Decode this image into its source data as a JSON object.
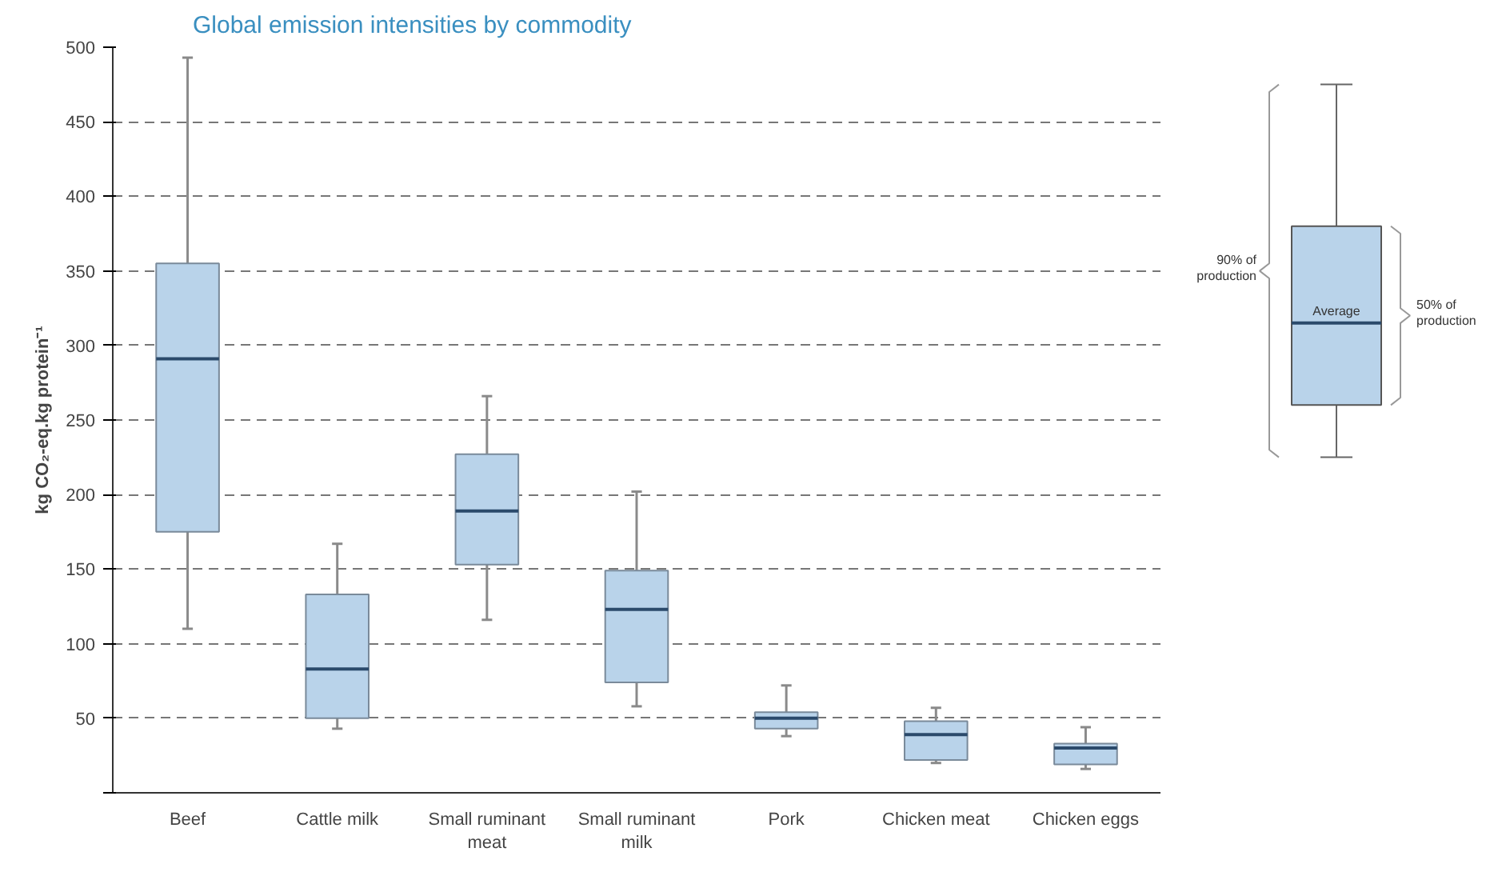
{
  "chart_data": {
    "type": "box",
    "title": "Global emission intensities by commodity",
    "ylabel": "kg CO₂-eq.kg protein⁻¹",
    "categories": [
      "Beef",
      "Cattle milk",
      "Small ruminant meat",
      "Small ruminant milk",
      "Pork",
      "Chicken meat",
      "Chicken eggs"
    ],
    "series": [
      {
        "color": "#b9d3ea",
        "boxes": [
          {
            "low": 110,
            "q1": 175,
            "median": 291,
            "q3": 355,
            "high": 493
          },
          {
            "low": 43,
            "q1": 50,
            "median": 83,
            "q3": 133,
            "high": 167
          },
          {
            "low": 116,
            "q1": 153,
            "median": 189,
            "q3": 227,
            "high": 266
          },
          {
            "low": 58,
            "q1": 74,
            "median": 123,
            "q3": 149,
            "high": 202
          },
          {
            "low": 38,
            "q1": 43,
            "median": 50,
            "q3": 54,
            "high": 72
          },
          {
            "low": 20,
            "q1": 22,
            "median": 39,
            "q3": 48,
            "high": 57
          },
          {
            "low": 16,
            "q1": 19,
            "median": 30,
            "q3": 33,
            "high": 44
          }
        ]
      }
    ],
    "ylim": [
      0,
      500
    ],
    "yticks": [
      {
        "value": 0,
        "label": null
      },
      50,
      100,
      150,
      200,
      250,
      300,
      350,
      400,
      450,
      500
    ],
    "grid": "y",
    "annotations": [
      "90% of production",
      "50% of production",
      "Average"
    ]
  }
}
